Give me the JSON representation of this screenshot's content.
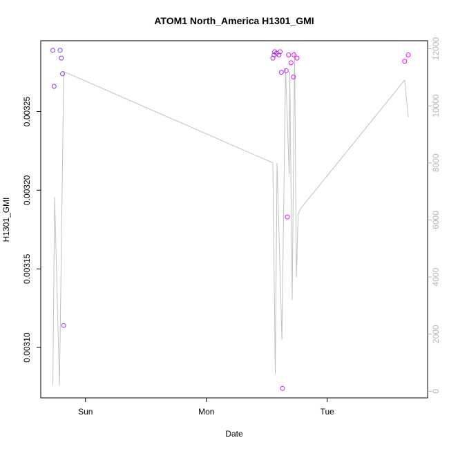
{
  "chart_data": {
    "type": "scatter",
    "title": "ATOM1 North_America H1301_GMI",
    "xlabel": "Date",
    "ylabel": "H1301_GMI",
    "x_ticks": [
      {
        "label": "Sun",
        "value": 1.0
      },
      {
        "label": "Mon",
        "value": 2.0
      },
      {
        "label": "Tue",
        "value": 3.0
      }
    ],
    "xlim": [
      0.63,
      3.83
    ],
    "ylim": [
      0.003068,
      0.003295
    ],
    "y_ticks": [
      0.0031,
      0.00315,
      0.0032,
      0.00325
    ],
    "y_tick_labels": [
      "0.00310",
      "0.00315",
      "0.00320",
      "0.00325"
    ],
    "y2lim": [
      -233,
      12279
    ],
    "y2_ticks": [
      0,
      2000,
      4000,
      6000,
      8000,
      10000,
      12000
    ],
    "y2_tick_labels": [
      "0",
      "2000",
      "4000",
      "6000",
      "8000",
      "10000",
      "12000"
    ],
    "grid": false,
    "colors": {
      "axis": "#000000",
      "secondary_axis": "#b5b5b5",
      "line": "#c0c0c0",
      "points_start": "#7b3fe4",
      "points_end": "#ff00ff"
    },
    "series": [
      {
        "kind": "points",
        "axis": "left",
        "points": [
          {
            "x": 0.73,
            "y": 0.003289
          },
          {
            "x": 0.79,
            "y": 0.003289
          },
          {
            "x": 0.8,
            "y": 0.003284
          },
          {
            "x": 0.74,
            "y": 0.003266
          },
          {
            "x": 0.81,
            "y": 0.003274
          },
          {
            "x": 0.82,
            "y": 0.003114
          },
          {
            "x": 2.55,
            "y": 0.003284
          },
          {
            "x": 2.56,
            "y": 0.003286
          },
          {
            "x": 2.565,
            "y": 0.003288
          },
          {
            "x": 2.58,
            "y": 0.003287
          },
          {
            "x": 2.6,
            "y": 0.003286
          },
          {
            "x": 2.61,
            "y": 0.003288
          },
          {
            "x": 2.62,
            "y": 0.003275
          },
          {
            "x": 2.63,
            "y": 0.003074
          },
          {
            "x": 2.66,
            "y": 0.003276
          },
          {
            "x": 2.67,
            "y": 0.003183
          },
          {
            "x": 2.68,
            "y": 0.003286
          },
          {
            "x": 2.7,
            "y": 0.003281
          },
          {
            "x": 2.72,
            "y": 0.003272
          },
          {
            "x": 2.725,
            "y": 0.003286
          },
          {
            "x": 2.75,
            "y": 0.003284
          },
          {
            "x": 3.64,
            "y": 0.003282
          },
          {
            "x": 3.67,
            "y": 0.003286
          }
        ]
      },
      {
        "kind": "line",
        "axis": "right",
        "points": [
          {
            "x": 0.73,
            "y": 200
          },
          {
            "x": 0.745,
            "y": 6800
          },
          {
            "x": 0.785,
            "y": 200
          },
          {
            "x": 0.82,
            "y": 11200
          },
          {
            "x": 2.55,
            "y": 8000
          },
          {
            "x": 2.57,
            "y": 600
          },
          {
            "x": 2.585,
            "y": 8000
          },
          {
            "x": 2.625,
            "y": 1800
          },
          {
            "x": 2.655,
            "y": 11300
          },
          {
            "x": 2.685,
            "y": 7600
          },
          {
            "x": 2.69,
            "y": 11200
          },
          {
            "x": 2.71,
            "y": 3200
          },
          {
            "x": 2.73,
            "y": 11900
          },
          {
            "x": 2.745,
            "y": 4000
          },
          {
            "x": 2.76,
            "y": 6200
          },
          {
            "x": 2.78,
            "y": 6400
          },
          {
            "x": 3.64,
            "y": 10900
          },
          {
            "x": 3.67,
            "y": 9600
          }
        ]
      }
    ]
  }
}
